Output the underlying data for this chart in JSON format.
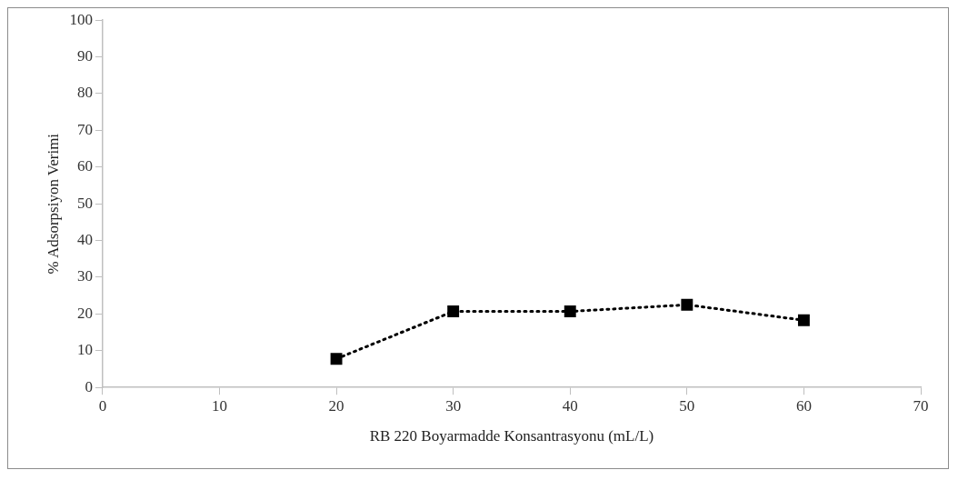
{
  "chart_data": {
    "type": "line",
    "xlabel": "RB 220 Boyarmadde Konsantrasyonu (mL/L)",
    "ylabel": "% Adsorpsiyon Verimi",
    "x": [
      20,
      30,
      40,
      50,
      60
    ],
    "series": [
      {
        "color": "#000000",
        "values": [
          7.8,
          20.7,
          20.7,
          22.5,
          18.3
        ]
      }
    ],
    "xlim": [
      0,
      70
    ],
    "xticks": [
      0,
      10,
      20,
      30,
      40,
      50,
      60,
      70
    ],
    "ylim": [
      0,
      100
    ],
    "yticks": [
      0,
      10,
      20,
      30,
      40,
      50,
      60,
      70,
      80,
      90,
      100
    ],
    "grid": false,
    "legend": false,
    "marker": "square",
    "line_style": "dotted"
  }
}
